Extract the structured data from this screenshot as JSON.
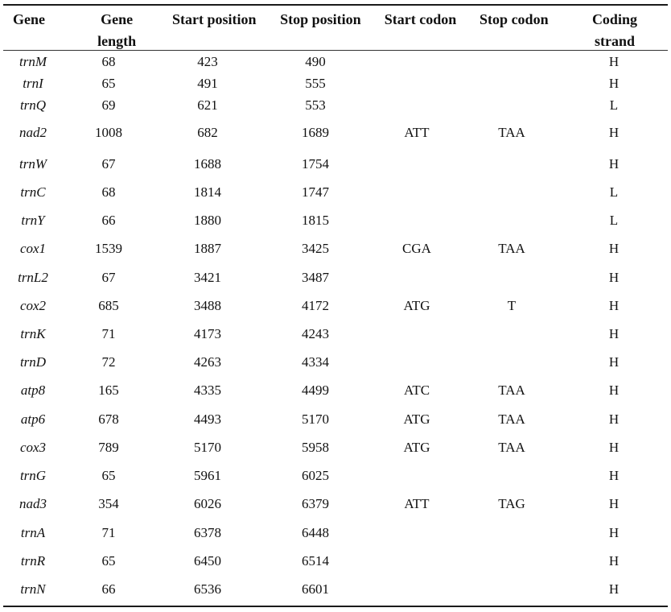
{
  "table": {
    "headers": {
      "gene": "Gene",
      "length_line1": "Gene",
      "length_line2": "length",
      "start": "Start position",
      "stop": "Stop position",
      "start_codon": "Start codon",
      "stop_codon": "Stop codon",
      "strand_line1": "Coding",
      "strand_line2": "strand"
    },
    "rows": [
      {
        "gene": "trnM",
        "length": "68",
        "start": "423",
        "stop": "490",
        "start_codon": "",
        "stop_codon": "",
        "strand": "H"
      },
      {
        "gene": "trnI",
        "length": "65",
        "start": "491",
        "stop": "555",
        "start_codon": "",
        "stop_codon": "",
        "strand": "H"
      },
      {
        "gene": "trnQ",
        "length": "69",
        "start": "621",
        "stop": "553",
        "start_codon": "",
        "stop_codon": "",
        "strand": "L"
      },
      {
        "gene": "nad2",
        "length": "1008",
        "start": "682",
        "stop": "1689",
        "start_codon": "ATT",
        "stop_codon": "TAA",
        "strand": "H"
      },
      {
        "gene": "trnW",
        "length": "67",
        "start": "1688",
        "stop": "1754",
        "start_codon": "",
        "stop_codon": "",
        "strand": "H"
      },
      {
        "gene": "trnC",
        "length": "68",
        "start": "1814",
        "stop": "1747",
        "start_codon": "",
        "stop_codon": "",
        "strand": "L"
      },
      {
        "gene": "trnY",
        "length": "66",
        "start": "1880",
        "stop": "1815",
        "start_codon": "",
        "stop_codon": "",
        "strand": "L"
      },
      {
        "gene": "cox1",
        "length": "1539",
        "start": "1887",
        "stop": "3425",
        "start_codon": "CGA",
        "stop_codon": "TAA",
        "strand": "H"
      },
      {
        "gene": "trnL2",
        "length": "67",
        "start": "3421",
        "stop": "3487",
        "start_codon": "",
        "stop_codon": "",
        "strand": "H"
      },
      {
        "gene": "cox2",
        "length": "685",
        "start": "3488",
        "stop": "4172",
        "start_codon": "ATG",
        "stop_codon": "T",
        "strand": "H"
      },
      {
        "gene": "trnK",
        "length": "71",
        "start": "4173",
        "stop": "4243",
        "start_codon": "",
        "stop_codon": "",
        "strand": "H"
      },
      {
        "gene": "trnD",
        "length": "72",
        "start": "4263",
        "stop": "4334",
        "start_codon": "",
        "stop_codon": "",
        "strand": "H"
      },
      {
        "gene": "atp8",
        "length": "165",
        "start": "4335",
        "stop": "4499",
        "start_codon": "ATC",
        "stop_codon": "TAA",
        "strand": "H"
      },
      {
        "gene": "atp6",
        "length": "678",
        "start": "4493",
        "stop": "5170",
        "start_codon": "ATG",
        "stop_codon": "TAA",
        "strand": "H"
      },
      {
        "gene": "cox3",
        "length": "789",
        "start": "5170",
        "stop": "5958",
        "start_codon": "ATG",
        "stop_codon": "TAA",
        "strand": "H"
      },
      {
        "gene": "trnG",
        "length": "65",
        "start": "5961",
        "stop": "6025",
        "start_codon": "",
        "stop_codon": "",
        "strand": "H"
      },
      {
        "gene": "nad3",
        "length": "354",
        "start": "6026",
        "stop": "6379",
        "start_codon": "ATT",
        "stop_codon": "TAG",
        "strand": "H"
      },
      {
        "gene": "trnA",
        "length": "71",
        "start": "6378",
        "stop": "6448",
        "start_codon": "",
        "stop_codon": "",
        "strand": "H"
      },
      {
        "gene": "trnR",
        "length": "65",
        "start": "6450",
        "stop": "6514",
        "start_codon": "",
        "stop_codon": "",
        "strand": "H"
      },
      {
        "gene": "trnN",
        "length": "66",
        "start": "6536",
        "stop": "6601",
        "start_codon": "",
        "stop_codon": "",
        "strand": "H"
      }
    ]
  }
}
